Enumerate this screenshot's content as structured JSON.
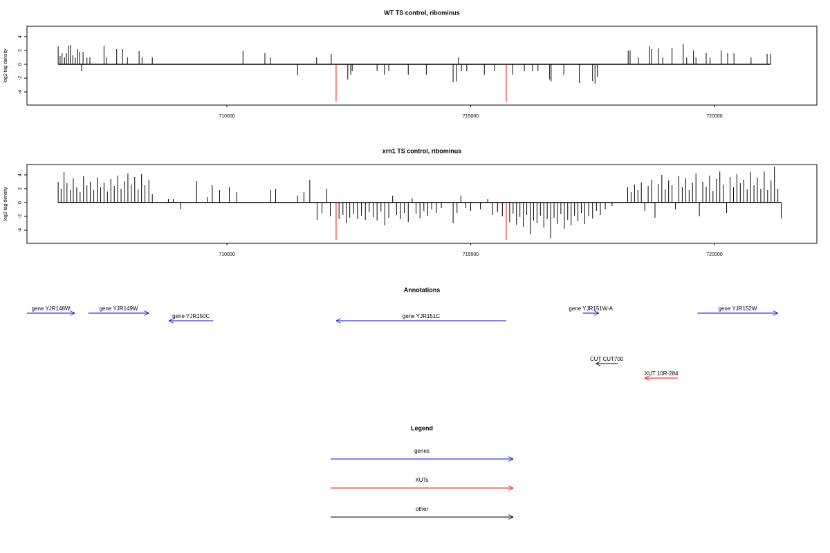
{
  "chart_data": [
    {
      "type": "spike",
      "title": "WT TS control, ribominus",
      "ylabel": "log2 tag density",
      "xlim": [
        705900,
        722100
      ],
      "ylim": [
        -5.9,
        5.5
      ],
      "xticks": [
        710000,
        715000,
        720000
      ],
      "yticks": [
        -4,
        -2,
        0,
        2,
        4
      ],
      "series": [
        {
          "color": "#000000",
          "x": [
            706540,
            706580,
            706620,
            706670,
            706710,
            706750,
            706790,
            706840,
            706890,
            706940,
            706980,
            707020,
            707050,
            707130,
            707190,
            707480,
            707530,
            707740,
            707860,
            707960,
            708200,
            708260,
            708470,
            710330,
            710780,
            710890,
            711450,
            711840,
            712140,
            712480,
            712540,
            712570,
            713080,
            713230,
            713320,
            713720,
            714090,
            714640,
            714710,
            714750,
            714810,
            714920,
            715280,
            715490,
            715860,
            716100,
            716270,
            716380,
            716620,
            716650,
            716910,
            717230,
            717500,
            717550,
            717600,
            718230,
            718270,
            718440,
            718670,
            718710,
            718850,
            718940,
            719130,
            719360,
            719430,
            719570,
            719620,
            719830,
            719910,
            720140,
            720270,
            720400,
            720750,
            721080,
            721150
          ],
          "values": [
            2.6,
            1.2,
            1.6,
            1.0,
            1.6,
            2.7,
            2.8,
            1.3,
            1.0,
            2.2,
            1.8,
            -1.0,
            1.8,
            1.0,
            1.0,
            2.7,
            1.0,
            2.2,
            2.2,
            1.0,
            1.9,
            1.0,
            1.0,
            1.9,
            1.6,
            1.0,
            -1.6,
            1.0,
            1.5,
            -2.2,
            -1.5,
            -1.0,
            -1.0,
            -1.5,
            -1.0,
            -1.5,
            -1.5,
            -2.6,
            -2.5,
            1.0,
            -1.0,
            -1.0,
            -1.5,
            -1.0,
            -1.5,
            -1.0,
            -1.0,
            -1.0,
            -2.2,
            -2.5,
            -1.5,
            -2.7,
            -2.4,
            -2.8,
            -1.8,
            2.0,
            2.0,
            1.0,
            2.6,
            2.2,
            2.3,
            1.0,
            2.4,
            2.9,
            1.0,
            2.0,
            1.0,
            1.6,
            1.0,
            2.0,
            1.6,
            1.6,
            1.0,
            1.5,
            1.5
          ]
        },
        {
          "color": "#ff0000",
          "x": [
            712240,
            715730
          ],
          "values": [
            -5.4,
            -5.4
          ]
        }
      ]
    },
    {
      "type": "spike",
      "title": "xrn1 TS control, ribominus",
      "ylabel": "log2 tag density",
      "xlim": [
        705900,
        722100
      ],
      "ylim": [
        -5.9,
        5.5
      ],
      "xticks": [
        710000,
        715000,
        720000
      ],
      "yticks": [
        -4,
        -2,
        0,
        2,
        4
      ],
      "series": [
        {
          "color": "#000000",
          "x": [
            706540,
            706600,
            706660,
            706720,
            706790,
            706850,
            706920,
            706990,
            707060,
            707130,
            707200,
            707270,
            707340,
            707410,
            707480,
            707550,
            707620,
            707690,
            707760,
            707830,
            707900,
            707970,
            708040,
            708110,
            708180,
            708250,
            708320,
            708400,
            708470,
            708800,
            708900,
            709050,
            709380,
            709600,
            709700,
            709850,
            710050,
            710200,
            710900,
            711000,
            711450,
            711580,
            711700,
            711850,
            711950,
            712050,
            712120,
            712300,
            712380,
            712450,
            712520,
            712600,
            712680,
            712760,
            712840,
            712920,
            713000,
            713080,
            713160,
            713240,
            713320,
            713400,
            713480,
            713560,
            713640,
            713720,
            713800,
            713880,
            713960,
            714040,
            714120,
            714200,
            714300,
            714400,
            714640,
            714720,
            714800,
            714900,
            715000,
            715200,
            715350,
            715450,
            715550,
            715650,
            715800,
            715870,
            715940,
            716010,
            716080,
            716150,
            716220,
            716290,
            716360,
            716430,
            716500,
            716570,
            716640,
            716710,
            716780,
            716850,
            716920,
            716990,
            717060,
            717130,
            717200,
            717270,
            717340,
            717420,
            717500,
            717580,
            717660,
            717760,
            717900,
            718220,
            718290,
            718360,
            718430,
            718500,
            718570,
            718640,
            718710,
            718780,
            718850,
            718920,
            718990,
            719060,
            719130,
            719200,
            719270,
            719340,
            719410,
            719480,
            719550,
            719620,
            719690,
            719760,
            719830,
            719900,
            719970,
            720040,
            720110,
            720180,
            720250,
            720320,
            720390,
            720460,
            720530,
            720600,
            720670,
            720740,
            720810,
            720880,
            720950,
            721020,
            721090,
            721160,
            721230,
            721300,
            721370
          ],
          "values": [
            3.0,
            2.0,
            4.4,
            2.8,
            1.8,
            3.5,
            2.2,
            1.5,
            3.8,
            2.5,
            3.0,
            1.8,
            3.6,
            2.2,
            2.9,
            1.6,
            3.4,
            2.4,
            3.9,
            2.0,
            3.1,
            4.2,
            2.6,
            3.7,
            1.9,
            4.1,
            2.5,
            3.3,
            1.2,
            0.5,
            0.5,
            -1.0,
            3.1,
            0.8,
            2.5,
            1.8,
            2.2,
            1.5,
            1.8,
            2.0,
            1.0,
            1.5,
            3.3,
            -2.5,
            -1.5,
            2.0,
            -2.0,
            -2.4,
            -1.8,
            -3.0,
            -2.2,
            -1.6,
            -2.4,
            -1.9,
            -2.5,
            -1.4,
            -2.1,
            -2.6,
            -1.3,
            -3.3,
            -2.2,
            1.0,
            -1.8,
            -2.4,
            -1.5,
            -2.8,
            0.6,
            -1.6,
            -2.3,
            -1.2,
            -1.9,
            -1.0,
            -1.5,
            -0.8,
            -3.0,
            -1.5,
            1.0,
            -0.8,
            -1.2,
            -1.0,
            0.5,
            -1.8,
            -1.4,
            -2.0,
            -2.8,
            -1.6,
            -3.2,
            -2.1,
            -3.5,
            -1.8,
            -4.6,
            -2.6,
            -3.0,
            -1.9,
            -3.6,
            -2.4,
            -5.2,
            -2.2,
            -3.1,
            -1.7,
            -3.8,
            -2.5,
            -3.3,
            -1.9,
            -2.7,
            -1.5,
            -3.1,
            -2.0,
            -2.3,
            -1.2,
            -1.8,
            -1.0,
            -0.5,
            2.2,
            1.5,
            2.6,
            1.8,
            2.9,
            -1.2,
            2.4,
            3.3,
            -2.2,
            2.7,
            4.0,
            1.9,
            3.2,
            2.5,
            -1.0,
            3.8,
            2.2,
            3.5,
            1.8,
            2.9,
            4.2,
            -2.0,
            3.0,
            2.3,
            3.9,
            1.7,
            3.4,
            4.5,
            2.6,
            -1.5,
            3.7,
            2.2,
            4.1,
            2.8,
            3.3,
            1.9,
            4.4,
            2.5,
            3.6,
            2.0,
            4.5,
            1.8,
            3.2,
            5.2,
            2.0,
            -2.3
          ]
        },
        {
          "color": "#ff0000",
          "x": [
            712240,
            715730
          ],
          "values": [
            -5.4,
            -5.4
          ]
        }
      ]
    }
  ],
  "annotations": {
    "title": "Annotations",
    "features": [
      {
        "label": "gene YJR148W",
        "start": 705900,
        "end": 706880,
        "strand": "+",
        "color": "#0000ff"
      },
      {
        "label": "gene YJR149W",
        "start": 707160,
        "end": 708400,
        "strand": "+",
        "color": "#0000ff"
      },
      {
        "label": "gene YJR150C",
        "start": 708810,
        "end": 709720,
        "strand": "-",
        "color": "#0000ff"
      },
      {
        "label": "gene YJR151C",
        "start": 712240,
        "end": 715730,
        "strand": "-",
        "color": "#0000ff"
      },
      {
        "label": "gene YJR151W-A",
        "start": 717300,
        "end": 717630,
        "strand": "+",
        "color": "#0000ff"
      },
      {
        "label": "gene YJR152W",
        "start": 719650,
        "end": 721300,
        "strand": "+",
        "color": "#0000ff"
      },
      {
        "label": "CUT CUT700",
        "start": 717570,
        "end": 718010,
        "strand": "-",
        "color": "#000000"
      },
      {
        "label": "XUT 10R-284",
        "start": 718570,
        "end": 719250,
        "strand": "-",
        "color": "#ff0000"
      }
    ]
  },
  "legend": {
    "title": "Legend",
    "items": [
      {
        "label": "genes",
        "color": "#0000ff"
      },
      {
        "label": "XUTs",
        "color": "#ff0000"
      },
      {
        "label": "other",
        "color": "#000000"
      }
    ]
  }
}
